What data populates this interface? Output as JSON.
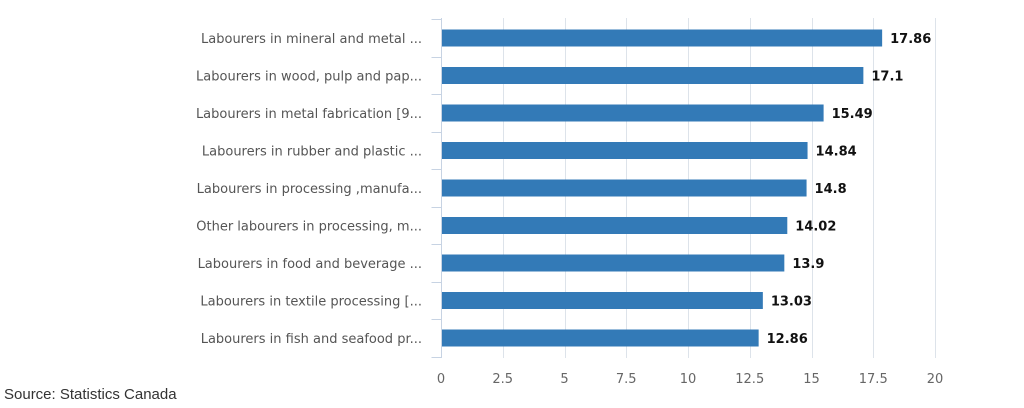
{
  "chart_data": {
    "type": "bar",
    "orientation": "horizontal",
    "categories": [
      "Labourers in mineral and metal ...",
      "Labourers in wood, pulp and pap...",
      "Labourers in metal fabrication [9...",
      "Labourers in rubber and plastic ...",
      "Labourers in processing ,manufa...",
      "Other labourers in processing, m...",
      "Labourers in food and beverage ...",
      "Labourers in textile processing [...",
      "Labourers in fish and seafood pr..."
    ],
    "values": [
      17.86,
      17.1,
      15.49,
      14.84,
      14.8,
      14.02,
      13.9,
      13.03,
      12.86
    ],
    "value_labels": [
      "17.86",
      "17.1",
      "15.49",
      "14.84",
      "14.8",
      "14.02",
      "13.9",
      "13.03",
      "12.86"
    ],
    "xlim": [
      0,
      20
    ],
    "ticks": [
      "0",
      "2.5",
      "5",
      "7.5",
      "10",
      "12.5",
      "15",
      "17.5",
      "20"
    ],
    "tick_values": [
      0,
      2.5,
      5,
      7.5,
      10,
      12.5,
      15,
      17.5,
      20
    ],
    "title": "",
    "xlabel": "",
    "ylabel": "",
    "grid": true,
    "bar_color": "#337ab7",
    "grid_color": "#dde3ea",
    "axis_color": "#c7d3e3"
  },
  "source": "Source: Statistics Canada"
}
